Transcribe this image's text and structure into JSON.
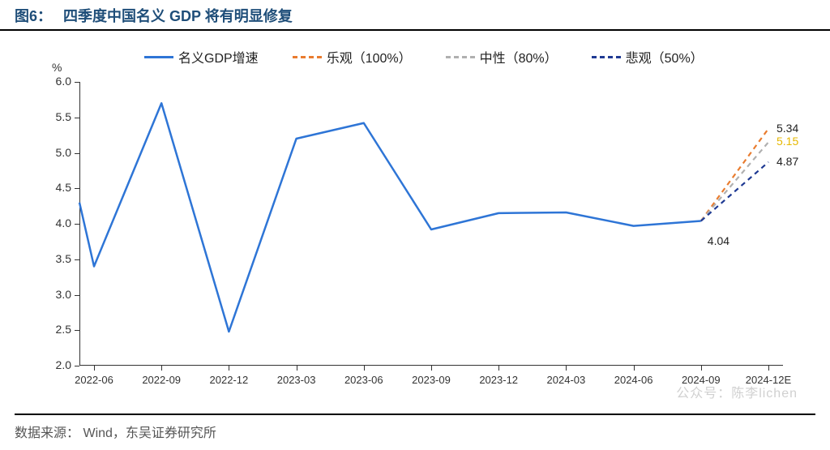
{
  "figure_label": "图6：",
  "figure_title": "四季度中国名义 GDP 将有明显修复",
  "source_label": "数据来源：",
  "source_text": "Wind，东吴证券研究所",
  "watermark_text": "公众号：陈李lichen",
  "chart": {
    "type": "line",
    "y_unit": "%",
    "ylim": [
      2.0,
      6.0
    ],
    "ytick_step": 0.5,
    "y_ticks": [
      "2.0",
      "2.5",
      "3.0",
      "3.5",
      "4.0",
      "4.5",
      "5.0",
      "5.5",
      "6.0"
    ],
    "x_categories": [
      "2022-06",
      "2022-09",
      "2022-12",
      "2023-03",
      "2023-06",
      "2023-09",
      "2023-12",
      "2024-03",
      "2024-06",
      "2024-09",
      "2024-12E"
    ],
    "title_fontsize": 18,
    "label_fontsize": 14,
    "background_color": "#ffffff",
    "axis_color": "#333333",
    "line_width": 2.5,
    "dash_width": 2.2,
    "series": [
      {
        "name": "名义GDP增速",
        "color": "#2e75d6",
        "dash": "none",
        "x": [
          "2022-04.5",
          "2022-06",
          "2022-09",
          "2022-12",
          "2023-03",
          "2023-06",
          "2023-09",
          "2023-12",
          "2024-03",
          "2024-06",
          "2024-09"
        ],
        "y": [
          4.3,
          3.4,
          5.7,
          2.48,
          5.2,
          5.42,
          3.92,
          4.15,
          4.16,
          3.97,
          4.04
        ],
        "start_before_first_tick": true
      },
      {
        "name": "乐观（100%）",
        "color": "#e97c2f",
        "dash": "6,5",
        "x": [
          "2024-09",
          "2024-12E"
        ],
        "y": [
          4.04,
          5.34
        ],
        "end_label": "5.34"
      },
      {
        "name": "中性（80%）",
        "color": "#b0b0b0",
        "dash": "6,5",
        "x": [
          "2024-09",
          "2024-12E"
        ],
        "y": [
          4.04,
          5.15
        ],
        "end_label": "5.15",
        "end_label_color": "#e6b800"
      },
      {
        "name": "悲观（50%）",
        "color": "#1f3a93",
        "dash": "6,5",
        "x": [
          "2024-09",
          "2024-12E"
        ],
        "y": [
          4.04,
          4.87
        ],
        "end_label": "4.87"
      }
    ],
    "point_annotations": [
      {
        "x": "2024-09",
        "y": 4.04,
        "text": "4.04",
        "dx": 8,
        "dy": 16
      }
    ],
    "legend": [
      {
        "label": "名义GDP增速",
        "color": "#2e75d6",
        "dash": "none"
      },
      {
        "label": "乐观（100%）",
        "color": "#e97c2f",
        "dash": "dashed"
      },
      {
        "label": "中性（80%）",
        "color": "#b0b0b0",
        "dash": "dashed"
      },
      {
        "label": "悲观（50%）",
        "color": "#1f3a93",
        "dash": "dashed"
      }
    ]
  }
}
